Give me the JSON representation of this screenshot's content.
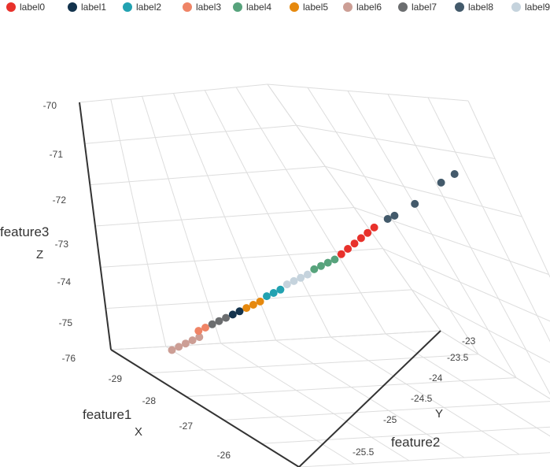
{
  "chart_data": {
    "type": "scatter",
    "dimensions": 3,
    "legend": {
      "position": "top",
      "items": [
        {
          "label": "label0",
          "color": "#e8312b"
        },
        {
          "label": "label1",
          "color": "#13334d"
        },
        {
          "label": "label2",
          "color": "#22a2b1"
        },
        {
          "label": "label3",
          "color": "#ef8466"
        },
        {
          "label": "label4",
          "color": "#57a37c"
        },
        {
          "label": "label5",
          "color": "#e6890e"
        },
        {
          "label": "label6",
          "color": "#cc9e95"
        },
        {
          "label": "label7",
          "color": "#6b6d6f"
        },
        {
          "label": "label8",
          "color": "#435a6b"
        },
        {
          "label": "label9",
          "color": "#c5d3dd"
        }
      ]
    },
    "axes": {
      "x": {
        "title": "feature1",
        "letter": "X",
        "ticks": [
          "-29",
          "-28",
          "-27",
          "-26"
        ]
      },
      "y": {
        "title": "feature2",
        "letter": "Y",
        "ticks": [
          "-23",
          "-23.5",
          "-24",
          "-24.5",
          "-25",
          "-25.5"
        ]
      },
      "z": {
        "title": "feature3",
        "letter": "Z",
        "ticks": [
          "-70",
          "-71",
          "-72",
          "-73",
          "-74",
          "-75",
          "-76"
        ],
        "range": [
          -76,
          -70
        ]
      }
    },
    "grid": true,
    "series": [
      {
        "name": "label6",
        "points": [
          [
            -29.2,
            -25.7,
            -75.6
          ],
          [
            -29.15,
            -25.65,
            -75.5
          ],
          [
            -29.1,
            -25.6,
            -75.4
          ],
          [
            -29.05,
            -25.55,
            -75.3
          ],
          [
            -29.0,
            -25.5,
            -75.2
          ]
        ]
      },
      {
        "name": "label3",
        "points": [
          [
            -29.0,
            -25.5,
            -75.05
          ],
          [
            -28.95,
            -25.45,
            -74.95
          ]
        ]
      },
      {
        "name": "label7",
        "points": [
          [
            -28.9,
            -25.4,
            -74.85
          ],
          [
            -28.85,
            -25.35,
            -74.75
          ],
          [
            -28.8,
            -25.3,
            -74.65
          ]
        ]
      },
      {
        "name": "label1",
        "points": [
          [
            -28.75,
            -25.25,
            -74.55
          ],
          [
            -28.7,
            -25.2,
            -74.45
          ]
        ]
      },
      {
        "name": "label5",
        "points": [
          [
            -28.65,
            -25.15,
            -74.35
          ],
          [
            -28.6,
            -25.1,
            -74.25
          ],
          [
            -28.55,
            -25.05,
            -74.15
          ]
        ]
      },
      {
        "name": "label2",
        "points": [
          [
            -28.5,
            -25.0,
            -74.0
          ],
          [
            -28.45,
            -24.95,
            -73.9
          ],
          [
            -28.4,
            -24.9,
            -73.8
          ]
        ]
      },
      {
        "name": "label9",
        "points": [
          [
            -28.35,
            -24.85,
            -73.65
          ],
          [
            -28.3,
            -24.8,
            -73.55
          ],
          [
            -28.25,
            -24.75,
            -73.45
          ],
          [
            -28.2,
            -24.7,
            -73.35
          ]
        ]
      },
      {
        "name": "label4",
        "points": [
          [
            -28.15,
            -24.65,
            -73.2
          ],
          [
            -28.1,
            -24.6,
            -73.1
          ],
          [
            -28.05,
            -24.55,
            -73.0
          ],
          [
            -28.0,
            -24.5,
            -72.9
          ]
        ]
      },
      {
        "name": "label0",
        "points": [
          [
            -27.95,
            -24.45,
            -72.75
          ],
          [
            -27.9,
            -24.4,
            -72.6
          ],
          [
            -27.85,
            -24.35,
            -72.45
          ],
          [
            -27.8,
            -24.3,
            -72.3
          ],
          [
            -27.75,
            -24.25,
            -72.15
          ],
          [
            -27.7,
            -24.2,
            -72.0
          ]
        ]
      },
      {
        "name": "label8",
        "points": [
          [
            -27.6,
            -24.1,
            -71.75
          ],
          [
            -27.55,
            -24.05,
            -71.65
          ],
          [
            -27.4,
            -23.9,
            -71.3
          ],
          [
            -27.2,
            -23.7,
            -70.7
          ],
          [
            -27.1,
            -23.6,
            -70.45
          ]
        ]
      }
    ]
  }
}
